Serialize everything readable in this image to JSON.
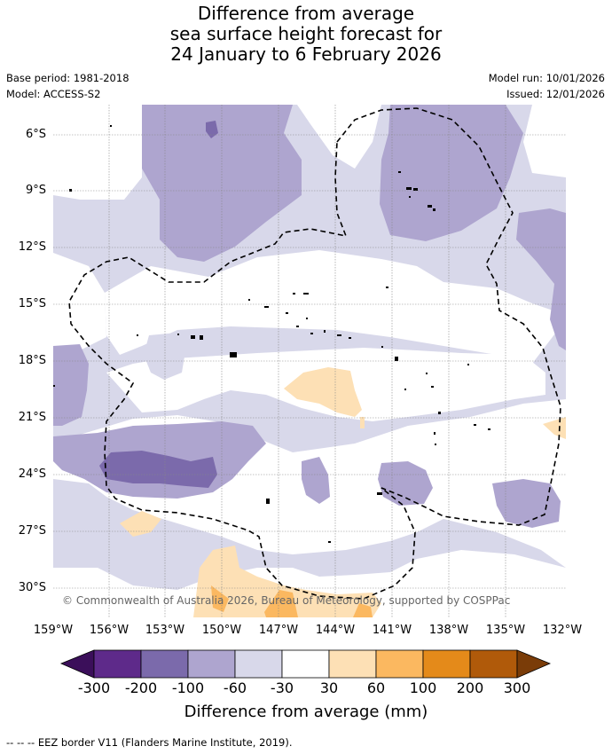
{
  "title": {
    "line1": "Difference from average",
    "line2": "sea surface height forecast for",
    "line3": "24 January to 6 February 2026"
  },
  "meta": {
    "base_period": "Base period: 1981-2018",
    "model": "Model: ACCESS-S2",
    "model_run": "Model run: 10/01/2026",
    "issued": "Issued: 12/01/2026"
  },
  "axes": {
    "lat_labels": [
      "6°S",
      "9°S",
      "12°S",
      "15°S",
      "18°S",
      "21°S",
      "24°S",
      "27°S",
      "30°S"
    ],
    "lon_labels": [
      "159°W",
      "156°W",
      "153°W",
      "150°W",
      "147°W",
      "144°W",
      "141°W",
      "138°W",
      "135°W",
      "132°W"
    ]
  },
  "copyright": "© Commonwealth of Australia 2026, Bureau of Meteorology, supported by COSPPac",
  "colorbar": {
    "title": "Difference from average (mm)",
    "labels": [
      "-300",
      "-200",
      "-100",
      "-60",
      "-30",
      "30",
      "60",
      "100",
      "200",
      "300"
    ],
    "colors": {
      "below": "#3b0f5a",
      "n300": "#5e2a8a",
      "n200": "#7b6aab",
      "n100": "#aea5cf",
      "n60": "#d8d8ea",
      "zero": "#ffffff",
      "p30": "#fde0b5",
      "p60": "#fbb860",
      "p100": "#e48a1a",
      "p200": "#b05a0a",
      "above": "#7a3c08"
    }
  },
  "legend": {
    "eez": "--  --  -- EEZ border V11 (Flanders Marine Institute, 2019)."
  }
}
